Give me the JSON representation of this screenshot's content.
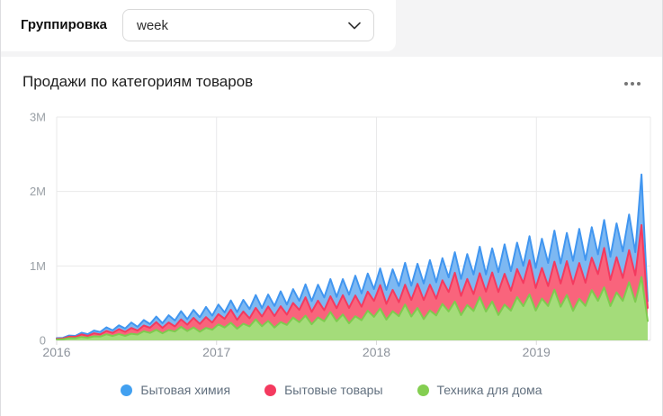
{
  "toolbar": {
    "grouping_label": "Группировка",
    "grouping_value": "week",
    "chevron_icon": "chevron-down"
  },
  "card": {
    "title": "Продажи по категориям товаров",
    "menu_icon": "kebab-horizontal-menu"
  },
  "chart_data": {
    "type": "area",
    "stacked": true,
    "title": "Продажи по категориям товаров",
    "xlabel": "",
    "ylabel": "",
    "grid": true,
    "legend_position": "bottom",
    "x_range": {
      "start": 2016.0,
      "end": 2019.7,
      "points_evenly_spaced": true,
      "interval": "week"
    },
    "x_tick_values": [
      2016,
      2017,
      2018,
      2019
    ],
    "x_tick_labels": [
      "2016",
      "2017",
      "2018",
      "2019"
    ],
    "y_unit": "thousands",
    "ylim": [
      0,
      3000
    ],
    "y_tick_values": [
      0,
      1000,
      2000,
      3000
    ],
    "y_tick_labels": [
      "0",
      "1M",
      "2M",
      "3M"
    ],
    "legend": [
      {
        "label": "Бытовая химия",
        "color": "#42a0f0"
      },
      {
        "label": "Бытовые товары",
        "color": "#f43a5f"
      },
      {
        "label": "Техника для дома",
        "color": "#84ce51"
      }
    ],
    "series": [
      {
        "name": "Техника для дома",
        "stroke": "#7ecb4f",
        "fill": "#a4dc7a",
        "values": [
          12,
          15,
          30,
          29,
          46,
          35,
          55,
          51,
          82,
          59,
          86,
          60,
          90,
          79,
          122,
          101,
          142,
          96,
          139,
          119,
          182,
          125,
          174,
          116,
          168,
          143,
          214,
          173,
          237,
          156,
          224,
          188,
          282,
          190,
          261,
          172,
          246,
          207,
          306,
          244,
          332,
          217,
          308,
          257,
          381,
          256,
          348,
          229,
          324,
          271,
          398,
          316,
          427,
          278,
          392,
          325,
          481,
          321,
          436,
          285,
          402,
          335,
          490,
          388,
          522,
          339,
          476,
          394,
          581,
          387,
          523,
          341,
          480,
          399,
          582,
          460,
          617,
          400,
          561,
          462,
          681,
          452,
          610,
          397,
          558,
          463,
          674,
          531,
          713,
          461,
          645,
          531,
          781,
          518,
          850,
          260
        ]
      },
      {
        "name": "Бытовые товары",
        "stroke": "#f43a5f",
        "fill": "#f9647c",
        "values": [
          10,
          10,
          19,
          19,
          34,
          26,
          40,
          29,
          45,
          41,
          64,
          54,
          77,
          53,
          78,
          68,
          104,
          72,
          102,
          69,
          100,
          86,
          129,
          105,
          144,
          96,
          138,
          116,
          175,
          119,
          164,
          108,
          155,
          131,
          194,
          155,
          212,
          139,
          197,
          165,
          246,
          165,
          225,
          148,
          210,
          176,
          259,
          206,
          279,
          182,
          257,
          214,
          316,
          212,
          287,
          188,
          266,
          222,
          324,
          257,
          346,
          225,
          317,
          262,
          387,
          258,
          349,
          228,
          321,
          267,
          389,
          308,
          414,
          268,
          376,
          311,
          458,
          304,
          411,
          267,
          376,
          312,
          455,
          359,
          481,
          311,
          436,
          359,
          528,
          351,
          473,
          307,
          431,
          357,
          700,
          175
        ]
      },
      {
        "name": "Бытовая химия",
        "stroke": "#4196f0",
        "fill": "#7db8f2",
        "values": [
          8,
          9,
          16,
          13,
          23,
          22,
          37,
          33,
          48,
          34,
          52,
          46,
          72,
          51,
          73,
          50,
          73,
          63,
          96,
          79,
          110,
          73,
          106,
          90,
          137,
          93,
          129,
          86,
          124,
          105,
          156,
          125,
          171,
          113,
          161,
          135,
          201,
          136,
          185,
          122,
          174,
          146,
          215,
          172,
          233,
          152,
          215,
          179,
          266,
          178,
          242,
          159,
          224,
          187,
          275,
          218,
          294,
          191,
          270,
          223,
          330,
          220,
          298,
          195,
          275,
          229,
          334,
          264,
          356,
          231,
          324,
          268,
          395,
          263,
          355,
          231,
          325,
          270,
          394,
          311,
          417,
          270,
          378,
          312,
          459,
          305,
          411,
          267,
          376,
          311,
          453,
          357,
          479,
          309,
          680,
          90
        ]
      }
    ],
    "style": {
      "grid_color": "#e9e9ea",
      "axis_color": "#d8d8da",
      "tick_label_color": "#9aa0a6",
      "x_label_color": "#8d939c"
    }
  }
}
